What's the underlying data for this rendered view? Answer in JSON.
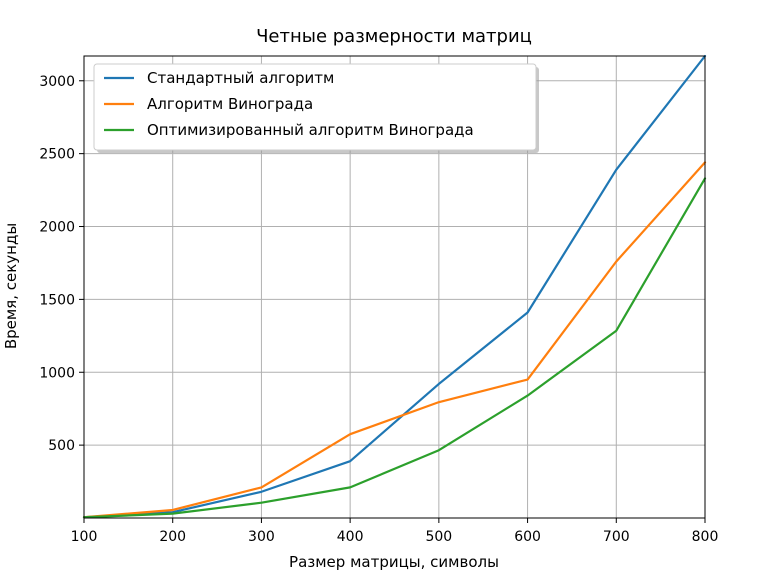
{
  "chart_data": {
    "type": "line",
    "title": "Четные размерности матриц",
    "xlabel": "Размер матрицы, символы",
    "ylabel": "Время, секунды",
    "x": [
      100,
      200,
      300,
      400,
      500,
      600,
      700,
      800
    ],
    "xlim": [
      100,
      800
    ],
    "ylim": [
      0,
      3170
    ],
    "xticks": [
      100,
      200,
      300,
      400,
      500,
      600,
      700,
      800
    ],
    "yticks": [
      500,
      1000,
      1500,
      2000,
      2500,
      3000
    ],
    "grid": true,
    "legend_position": "upper-left",
    "series": [
      {
        "name": "Стандартный алгоритм",
        "color": "#1f77b4",
        "values": [
          5,
          40,
          180,
          390,
          920,
          1410,
          2390,
          3170
        ]
      },
      {
        "name": "Алгоритм Винограда",
        "color": "#ff7f0e",
        "values": [
          5,
          55,
          210,
          575,
          795,
          950,
          1760,
          2440
        ]
      },
      {
        "name": "Оптимизированный алгоритм Винограда",
        "color": "#2ca02c",
        "values": [
          5,
          30,
          105,
          210,
          465,
          840,
          1285,
          2330
        ]
      }
    ]
  }
}
